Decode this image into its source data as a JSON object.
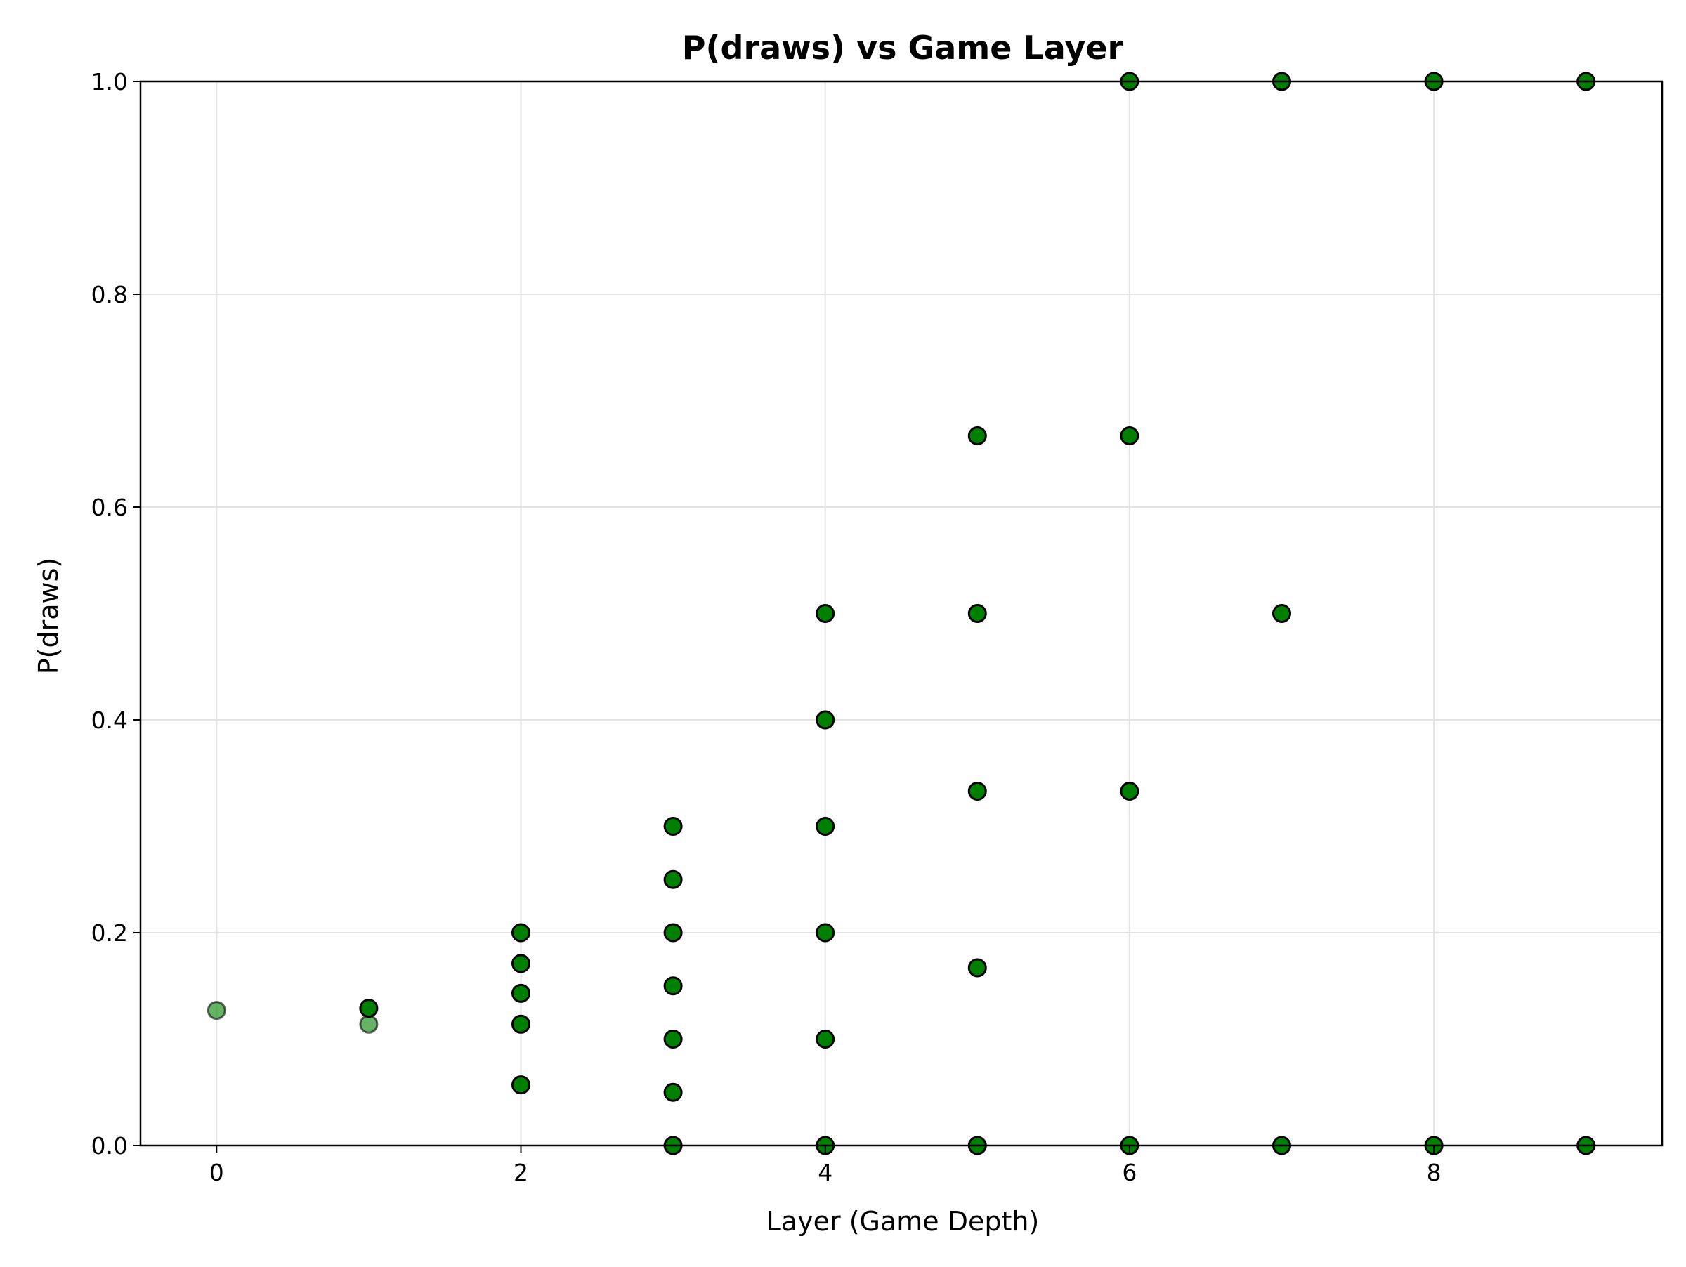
{
  "chart_data": {
    "type": "scatter",
    "title": "P(draws) vs Game Layer",
    "xlabel": "Layer (Game Depth)",
    "ylabel": "P(draws)",
    "xlim": [
      -0.5,
      9.5
    ],
    "ylim": [
      0,
      1.0
    ],
    "xticks": [
      0,
      2,
      4,
      6,
      8
    ],
    "xtick_labels": [
      "0",
      "2",
      "4",
      "6",
      "8"
    ],
    "yticks": [
      0.0,
      0.2,
      0.4,
      0.6,
      0.8,
      1.0
    ],
    "ytick_labels": [
      "0.0",
      "0.2",
      "0.4",
      "0.6",
      "0.8",
      "1.0"
    ],
    "grid": true,
    "marker_color": "#008000",
    "marker_edge_color": "#000000",
    "grid_color": "#e3e3e3",
    "points": [
      {
        "x": 0,
        "y": 0.127,
        "alpha": 0.6
      },
      {
        "x": 1,
        "y": 0.114,
        "alpha": 0.6
      },
      {
        "x": 1,
        "y": 0.129,
        "alpha": 1.0
      },
      {
        "x": 2,
        "y": 0.057,
        "alpha": 1.0
      },
      {
        "x": 2,
        "y": 0.114,
        "alpha": 1.0
      },
      {
        "x": 2,
        "y": 0.143,
        "alpha": 1.0
      },
      {
        "x": 2,
        "y": 0.171,
        "alpha": 1.0
      },
      {
        "x": 2,
        "y": 0.2,
        "alpha": 1.0
      },
      {
        "x": 3,
        "y": 0.0,
        "alpha": 1.0
      },
      {
        "x": 3,
        "y": 0.05,
        "alpha": 1.0
      },
      {
        "x": 3,
        "y": 0.1,
        "alpha": 1.0
      },
      {
        "x": 3,
        "y": 0.15,
        "alpha": 1.0
      },
      {
        "x": 3,
        "y": 0.2,
        "alpha": 1.0
      },
      {
        "x": 3,
        "y": 0.25,
        "alpha": 1.0
      },
      {
        "x": 3,
        "y": 0.3,
        "alpha": 1.0
      },
      {
        "x": 4,
        "y": 0.0,
        "alpha": 1.0
      },
      {
        "x": 4,
        "y": 0.1,
        "alpha": 1.0
      },
      {
        "x": 4,
        "y": 0.2,
        "alpha": 1.0
      },
      {
        "x": 4,
        "y": 0.3,
        "alpha": 1.0
      },
      {
        "x": 4,
        "y": 0.4,
        "alpha": 1.0
      },
      {
        "x": 4,
        "y": 0.5,
        "alpha": 1.0
      },
      {
        "x": 5,
        "y": 0.0,
        "alpha": 1.0
      },
      {
        "x": 5,
        "y": 0.167,
        "alpha": 1.0
      },
      {
        "x": 5,
        "y": 0.333,
        "alpha": 1.0
      },
      {
        "x": 5,
        "y": 0.5,
        "alpha": 1.0
      },
      {
        "x": 5,
        "y": 0.667,
        "alpha": 1.0
      },
      {
        "x": 6,
        "y": 0.0,
        "alpha": 1.0
      },
      {
        "x": 6,
        "y": 0.333,
        "alpha": 1.0
      },
      {
        "x": 6,
        "y": 0.667,
        "alpha": 1.0
      },
      {
        "x": 6,
        "y": 1.0,
        "alpha": 1.0
      },
      {
        "x": 7,
        "y": 0.0,
        "alpha": 1.0
      },
      {
        "x": 7,
        "y": 0.5,
        "alpha": 1.0
      },
      {
        "x": 7,
        "y": 1.0,
        "alpha": 1.0
      },
      {
        "x": 8,
        "y": 0.0,
        "alpha": 1.0
      },
      {
        "x": 8,
        "y": 1.0,
        "alpha": 1.0
      },
      {
        "x": 9,
        "y": 0.0,
        "alpha": 1.0
      },
      {
        "x": 9,
        "y": 1.0,
        "alpha": 1.0
      }
    ]
  }
}
